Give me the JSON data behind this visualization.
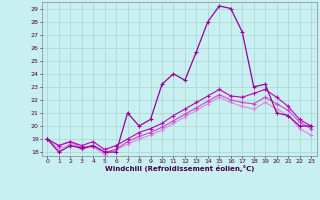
{
  "xlabel": "Windchill (Refroidissement éolien,°C)",
  "background_color": "#c8f0f0",
  "grid_color": "#b0d8d8",
  "line_color1": "#990099",
  "line_color2": "#bb00bb",
  "line_color3": "#cc44cc",
  "line_color4": "#dd88dd",
  "xlim": [
    -0.5,
    23.5
  ],
  "ylim": [
    17.7,
    29.5
  ],
  "yticks": [
    18,
    19,
    20,
    21,
    22,
    23,
    24,
    25,
    26,
    27,
    28,
    29
  ],
  "xticks": [
    0,
    1,
    2,
    3,
    4,
    5,
    6,
    7,
    8,
    9,
    10,
    11,
    12,
    13,
    14,
    15,
    16,
    17,
    18,
    19,
    20,
    21,
    22,
    23
  ],
  "series1_x": [
    0,
    1,
    2,
    3,
    4,
    5,
    6,
    7,
    8,
    9,
    10,
    11,
    12,
    13,
    14,
    15,
    16,
    17,
    18,
    19,
    20,
    21,
    22,
    23
  ],
  "series1_y": [
    19.0,
    18.0,
    18.5,
    18.3,
    18.5,
    18.0,
    18.0,
    21.0,
    20.0,
    20.5,
    23.2,
    24.0,
    23.5,
    25.7,
    28.0,
    29.2,
    29.0,
    27.2,
    23.0,
    23.2,
    21.0,
    20.8,
    20.0,
    20.0
  ],
  "series2_x": [
    0,
    1,
    2,
    3,
    4,
    5,
    6,
    7,
    8,
    9,
    10,
    11,
    12,
    13,
    14,
    15,
    16,
    17,
    18,
    19,
    20,
    21,
    22,
    23
  ],
  "series2_y": [
    19.0,
    18.5,
    18.8,
    18.5,
    18.8,
    18.2,
    18.5,
    19.0,
    19.5,
    19.8,
    20.2,
    20.8,
    21.3,
    21.8,
    22.3,
    22.8,
    22.3,
    22.2,
    22.5,
    22.8,
    22.2,
    21.5,
    20.5,
    20.0
  ],
  "series3_x": [
    0,
    1,
    2,
    3,
    4,
    5,
    6,
    7,
    8,
    9,
    10,
    11,
    12,
    13,
    14,
    15,
    16,
    17,
    18,
    19,
    20,
    21,
    22,
    23
  ],
  "series3_y": [
    19.0,
    18.5,
    18.8,
    18.3,
    18.5,
    18.0,
    18.2,
    18.8,
    19.2,
    19.5,
    19.9,
    20.4,
    20.9,
    21.4,
    21.9,
    22.4,
    22.0,
    21.8,
    21.7,
    22.2,
    21.7,
    21.2,
    20.3,
    19.8
  ],
  "series4_x": [
    0,
    1,
    2,
    3,
    4,
    5,
    6,
    7,
    8,
    9,
    10,
    11,
    12,
    13,
    14,
    15,
    16,
    17,
    18,
    19,
    20,
    21,
    22,
    23
  ],
  "series4_y": [
    19.0,
    18.2,
    18.6,
    18.2,
    18.4,
    17.8,
    18.2,
    18.6,
    19.0,
    19.3,
    19.7,
    20.2,
    20.7,
    21.2,
    21.7,
    22.2,
    21.8,
    21.5,
    21.3,
    21.8,
    21.3,
    20.8,
    19.8,
    19.3
  ]
}
